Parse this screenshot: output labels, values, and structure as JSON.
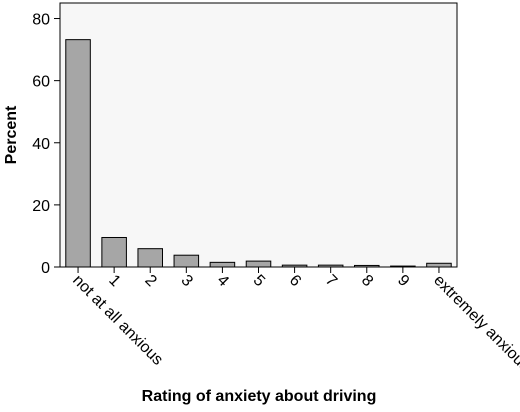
{
  "colors": {
    "plot_background": "#f7f7f7",
    "bar_fill": "#a6a6a6",
    "bar_stroke": "#000000",
    "axis": "#000000"
  },
  "chart_data": {
    "type": "bar",
    "title": "",
    "xlabel": "Rating of anxiety about driving",
    "ylabel": "Percent",
    "categories": [
      "not at all anxious",
      "1",
      "2",
      "3",
      "4",
      "5",
      "6",
      "7",
      "8",
      "9",
      "extremely anxious"
    ],
    "values": [
      73.2,
      9.5,
      5.9,
      3.8,
      1.5,
      1.9,
      0.6,
      0.6,
      0.5,
      0.3,
      1.2
    ],
    "ylim": [
      0,
      85
    ],
    "yticks": [
      0,
      20,
      40,
      60,
      80
    ],
    "grid": false,
    "legend": "none"
  }
}
